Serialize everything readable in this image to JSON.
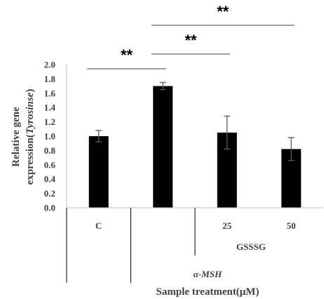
{
  "chart_data": {
    "type": "bar",
    "categories": [
      "C",
      "",
      "25",
      "50"
    ],
    "values": [
      1.0,
      1.7,
      1.05,
      0.82
    ],
    "errors": [
      0.08,
      0.05,
      0.23,
      0.16
    ],
    "ylabel_lines": [
      "Relative gene",
      "expression(Tyrosinse)"
    ],
    "ylabel_line2_parts": [
      "expression(",
      "Tyrosinse",
      ")"
    ],
    "xlabel": "Sample treatment(μM)",
    "ylim": [
      0.0,
      2.0
    ],
    "yticks": [
      "0.0",
      "0.2",
      "0.4",
      "0.6",
      "0.8",
      "1.0",
      "1.2",
      "1.4",
      "1.6",
      "1.8",
      "2.0"
    ],
    "group_labels": {
      "gsssg": "GSSSG",
      "msh": "α-MSH"
    },
    "significance": [
      {
        "from": 0,
        "to": 1,
        "label": "**"
      },
      {
        "from": 1,
        "to": 2,
        "label": "**"
      },
      {
        "from": 1,
        "to": 3,
        "label": "**"
      }
    ],
    "grid": false,
    "colors": {
      "bar": "#000000",
      "axis": "#bfbfbf",
      "text": "#404040"
    }
  }
}
